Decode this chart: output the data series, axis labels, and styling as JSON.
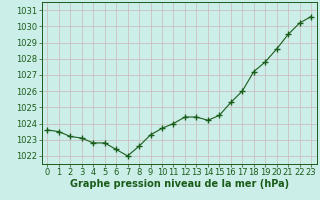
{
  "x": [
    0,
    1,
    2,
    3,
    4,
    5,
    6,
    7,
    8,
    9,
    10,
    11,
    12,
    13,
    14,
    15,
    16,
    17,
    18,
    19,
    20,
    21,
    22,
    23
  ],
  "y": [
    1023.6,
    1023.5,
    1023.2,
    1023.1,
    1022.8,
    1022.8,
    1022.4,
    1022.0,
    1022.6,
    1023.3,
    1023.7,
    1024.0,
    1024.4,
    1024.4,
    1024.2,
    1024.5,
    1025.3,
    1026.0,
    1027.2,
    1027.8,
    1028.6,
    1029.5,
    1030.2,
    1030.6
  ],
  "line_color": "#1a5c1a",
  "marker": "+",
  "marker_size": 4,
  "marker_linewidth": 1.0,
  "bg_color": "#cceee8",
  "grid_color": "#c8b8b8",
  "xlabel": "Graphe pression niveau de la mer (hPa)",
  "xlabel_color": "#1a5c1a",
  "xlabel_fontsize": 7,
  "tick_color": "#1a5c1a",
  "tick_fontsize": 6,
  "ylim": [
    1021.5,
    1031.5
  ],
  "yticks": [
    1022,
    1023,
    1024,
    1025,
    1026,
    1027,
    1028,
    1029,
    1030,
    1031
  ],
  "xlim": [
    -0.5,
    23.5
  ],
  "linewidth": 0.8,
  "spine_color": "#1a5c1a"
}
